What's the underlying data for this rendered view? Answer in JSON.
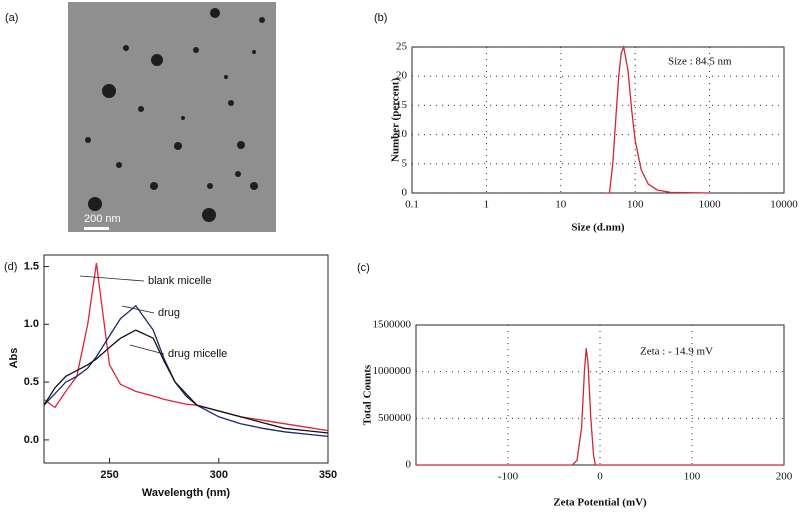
{
  "image_panel": {
    "label": "(a)",
    "scale_bar": "200 nm"
  },
  "chart_data": [
    {
      "type": "line",
      "panel_label": "(b)",
      "annotation": "Size :  84.5 nm",
      "x_label": "Size (d.nm)",
      "y_label": "Number (percent)",
      "xscale": "log",
      "grid": true,
      "color": "#d0263a",
      "x": [
        40,
        45,
        50,
        55,
        60,
        65,
        70,
        80,
        90,
        100,
        120,
        150,
        200,
        300,
        1000
      ],
      "values": [
        0,
        0,
        5,
        13,
        20,
        24,
        25,
        21,
        14,
        9,
        4,
        1.5,
        0.5,
        0.1,
        0
      ],
      "xlim": [
        0.1,
        10000
      ],
      "xticks": [
        0.1,
        1,
        10,
        100,
        1000,
        10000
      ],
      "ylim": [
        0,
        25
      ],
      "yticks": [
        0,
        5,
        10,
        15,
        20,
        25
      ]
    },
    {
      "type": "line",
      "panel_label": "(c)",
      "annotation": "Zeta :  - 14.9 mV",
      "x_label": "Zeta Potential (mV)",
      "y_label": "Total Counts",
      "grid": true,
      "color": "#d0263a",
      "x": [
        -200,
        -30,
        -25,
        -20,
        -17,
        -15,
        -13,
        -10,
        -7,
        -5,
        200
      ],
      "values": [
        0,
        0,
        50000,
        400000,
        1000000,
        1250000,
        1100000,
        500000,
        100000,
        0,
        0
      ],
      "xlim": [
        -200,
        200
      ],
      "xticks": [
        -100,
        0,
        100,
        200
      ],
      "ylim": [
        0,
        1500000
      ],
      "yticks": [
        0,
        500000,
        1000000,
        1500000
      ]
    },
    {
      "type": "line",
      "panel_label": "(d)",
      "x_label": "Wavelength (nm)",
      "y_label": "Abs",
      "grid": false,
      "x": [
        220,
        225,
        230,
        235,
        240,
        244,
        250,
        255,
        262,
        270,
        275,
        280,
        285,
        290,
        300,
        310,
        320,
        330,
        340,
        350
      ],
      "series": [
        {
          "name": "blank micelle",
          "color": "#e0223a",
          "values": [
            0.35,
            0.28,
            0.42,
            0.55,
            1.0,
            1.53,
            0.65,
            0.48,
            0.42,
            0.38,
            0.35,
            0.33,
            0.31,
            0.3,
            0.25,
            0.2,
            0.17,
            0.14,
            0.11,
            0.08
          ]
        },
        {
          "name": "drug",
          "color": "#1a2a6c",
          "values": [
            0.3,
            0.4,
            0.5,
            0.55,
            0.62,
            0.72,
            0.9,
            1.05,
            1.16,
            0.95,
            0.7,
            0.5,
            0.38,
            0.3,
            0.2,
            0.14,
            0.1,
            0.07,
            0.05,
            0.03
          ]
        },
        {
          "name": "drug micelle",
          "color": "#111111",
          "values": [
            0.3,
            0.45,
            0.55,
            0.6,
            0.65,
            0.7,
            0.8,
            0.88,
            0.95,
            0.88,
            0.68,
            0.5,
            0.4,
            0.3,
            0.25,
            0.2,
            0.15,
            0.1,
            0.08,
            0.06
          ]
        }
      ],
      "xlim": [
        220,
        350
      ],
      "xticks": [
        250,
        300,
        350
      ],
      "ylim": [
        -0.2,
        1.6
      ],
      "yticks": [
        {
          "value": 0,
          "label": "0.0"
        },
        {
          "value": 0.5,
          "label": "0.5"
        },
        {
          "value": 1,
          "label": "1.0"
        },
        {
          "value": 1.5,
          "label": "1.5"
        }
      ]
    }
  ]
}
